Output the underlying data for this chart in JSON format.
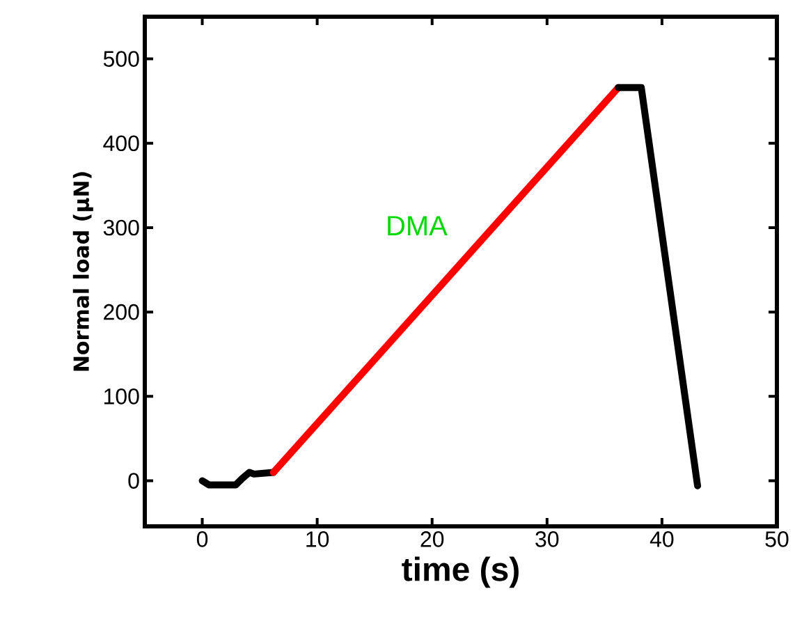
{
  "chart_data": {
    "type": "line",
    "xlabel": "time (s)",
    "ylabel": "Normal load (μN)",
    "xlim": [
      -5,
      50
    ],
    "ylim": [
      -54,
      550
    ],
    "xticks": [
      0,
      10,
      20,
      30,
      40,
      50
    ],
    "yticks": [
      0,
      100,
      200,
      300,
      400,
      500
    ],
    "series": [
      {
        "color": "#000000",
        "x": [
          0,
          0.6,
          2.9,
          3.5,
          4.1,
          4.5,
          6.2
        ],
        "values": [
          0,
          -5,
          -5,
          3,
          10,
          8,
          10
        ]
      },
      {
        "color": "#ff0000",
        "x": [
          6.2,
          36.2
        ],
        "values": [
          10,
          466
        ]
      },
      {
        "color": "#000000",
        "x": [
          36.2,
          38.2,
          43.1
        ],
        "values": [
          466,
          466,
          -6
        ]
      }
    ],
    "annotations": [
      "DMA"
    ],
    "grid": false
  }
}
